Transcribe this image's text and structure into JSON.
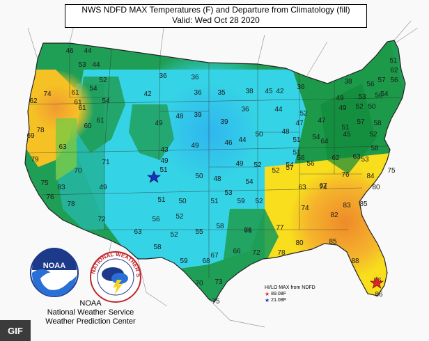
{
  "title": {
    "line1": "NWS NDFD MAX Temperatures (F) and Departure from Climatology (fill)",
    "line2": "Valid: Wed Oct 28 2020"
  },
  "legend": {
    "title": "HI/LO MAX from NDFD",
    "high": "89.08F",
    "low": "21.08F",
    "high_color": "#e0242b",
    "low_color": "#1c2fbf"
  },
  "credit": {
    "org": "NOAA",
    "line1": "National Weather Service",
    "line2": "Weather Prediction Center",
    "ring_text": "NATIONAL WEATHER SERVICE"
  },
  "badge": "GIF",
  "fill_colors": {
    "cold": "#35d3e6",
    "cool": "#25b5a0",
    "near": "#1f9e55",
    "warm_green": "#7ac943",
    "warm": "#f5d21c",
    "hot": "#f2a63a",
    "hotter": "#ee8a2a"
  },
  "temperatures": [
    {
      "label": "46"
    },
    {
      "label": "44"
    },
    {
      "label": "44"
    },
    {
      "label": "52"
    },
    {
      "label": "54"
    },
    {
      "label": "61"
    },
    {
      "label": "74"
    },
    {
      "label": "62"
    },
    {
      "label": "61"
    },
    {
      "label": "54"
    },
    {
      "label": "53"
    },
    {
      "label": "61"
    },
    {
      "label": "60"
    },
    {
      "label": "61"
    },
    {
      "label": "78"
    },
    {
      "label": "69"
    },
    {
      "label": "63"
    },
    {
      "label": "79"
    },
    {
      "label": "75"
    },
    {
      "label": "83"
    },
    {
      "label": "76"
    },
    {
      "label": "78"
    },
    {
      "label": "70"
    },
    {
      "label": "71"
    },
    {
      "label": "49"
    },
    {
      "label": "72"
    },
    {
      "label": "42"
    },
    {
      "label": "36"
    },
    {
      "label": "36"
    },
    {
      "label": "35"
    },
    {
      "label": "38"
    },
    {
      "label": "36"
    },
    {
      "label": "48"
    },
    {
      "label": "39"
    },
    {
      "label": "49"
    },
    {
      "label": "39"
    },
    {
      "label": "36"
    },
    {
      "label": "49"
    },
    {
      "label": "46"
    },
    {
      "label": "44"
    },
    {
      "label": "43"
    },
    {
      "label": "49"
    },
    {
      "label": "51"
    },
    {
      "label": "50"
    },
    {
      "label": "48"
    },
    {
      "label": "49"
    },
    {
      "label": "52"
    },
    {
      "label": "54"
    },
    {
      "label": "51"
    },
    {
      "label": "50"
    },
    {
      "label": "53"
    },
    {
      "label": "52"
    },
    {
      "label": "51"
    },
    {
      "label": "58"
    },
    {
      "label": "59"
    },
    {
      "label": "52"
    },
    {
      "label": "55"
    },
    {
      "label": "52"
    },
    {
      "label": "56"
    },
    {
      "label": "63"
    },
    {
      "label": "58"
    },
    {
      "label": "59"
    },
    {
      "label": "68"
    },
    {
      "label": "67"
    },
    {
      "label": "66"
    },
    {
      "label": "71"
    },
    {
      "label": "72"
    },
    {
      "label": "70"
    },
    {
      "label": "73"
    },
    {
      "label": "75"
    },
    {
      "label": "66"
    },
    {
      "label": "77"
    },
    {
      "label": "80"
    },
    {
      "label": "78"
    },
    {
      "label": "85"
    },
    {
      "label": "88"
    },
    {
      "label": "86"
    },
    {
      "label": "86"
    },
    {
      "label": "82"
    },
    {
      "label": "83"
    },
    {
      "label": "85"
    },
    {
      "label": "76"
    },
    {
      "label": "74"
    },
    {
      "label": "74"
    },
    {
      "label": "80"
    },
    {
      "label": "84"
    },
    {
      "label": "75"
    },
    {
      "label": "67"
    },
    {
      "label": "63"
    },
    {
      "label": "62"
    },
    {
      "label": "64"
    },
    {
      "label": "57"
    },
    {
      "label": "56"
    },
    {
      "label": "56"
    },
    {
      "label": "54"
    },
    {
      "label": "50"
    },
    {
      "label": "52"
    },
    {
      "label": "54"
    },
    {
      "label": "51"
    },
    {
      "label": "51"
    },
    {
      "label": "47"
    },
    {
      "label": "47"
    },
    {
      "label": "52"
    },
    {
      "label": "48"
    },
    {
      "label": "44"
    },
    {
      "label": "42"
    },
    {
      "label": "45"
    },
    {
      "label": "36"
    },
    {
      "label": "38"
    },
    {
      "label": "49"
    },
    {
      "label": "52"
    },
    {
      "label": "57"
    },
    {
      "label": "51"
    },
    {
      "label": "50"
    },
    {
      "label": "56"
    },
    {
      "label": "58"
    },
    {
      "label": "52"
    },
    {
      "label": "58"
    },
    {
      "label": "53"
    },
    {
      "label": "57"
    },
    {
      "label": "56"
    },
    {
      "label": "62"
    },
    {
      "label": "45"
    },
    {
      "label": "49"
    },
    {
      "label": "56"
    },
    {
      "label": "53"
    },
    {
      "label": "51"
    },
    {
      "label": "63"
    },
    {
      "label": "54"
    }
  ]
}
